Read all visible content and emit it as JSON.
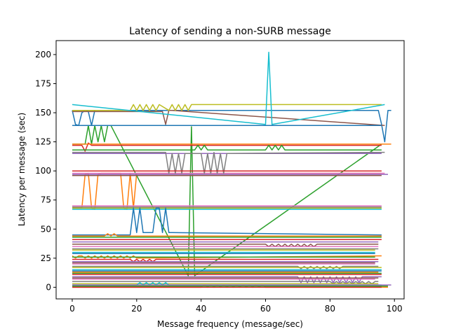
{
  "chart_data": {
    "type": "line",
    "title": "Latency of sending a non-SURB message",
    "xlabel": "Message frequency (message/sec)",
    "ylabel": "Latency per message (sec)",
    "xlim": [
      -5,
      103
    ],
    "ylim": [
      -10,
      212
    ],
    "xticks": [
      0,
      20,
      40,
      60,
      80,
      100
    ],
    "yticks": [
      0,
      25,
      50,
      75,
      100,
      125,
      150,
      175,
      200
    ],
    "grid": false,
    "legend": "none",
    "palette": [
      "#1f77b4",
      "#ff7f0e",
      "#2ca02c",
      "#d62728",
      "#9467bd",
      "#8c564b",
      "#e377c2",
      "#7f7f7f",
      "#bcbd22",
      "#17becf"
    ],
    "series": [
      {
        "x": [
          0,
          1,
          2,
          3,
          4,
          5,
          6,
          7,
          30,
          31,
          95,
          96,
          97,
          98,
          99
        ],
        "y": [
          152,
          140,
          139,
          150,
          152,
          151,
          139,
          152,
          152,
          152,
          152,
          140,
          125,
          152,
          152
        ]
      },
      {
        "x": [
          0,
          3,
          4,
          5,
          6,
          7,
          8,
          9,
          10,
          15,
          16,
          17,
          18,
          19,
          20,
          96
        ],
        "y": [
          68,
          68,
          97,
          98,
          68,
          67,
          97,
          98,
          98,
          98,
          68,
          67,
          98,
          68,
          98,
          98
        ]
      },
      {
        "x": [
          0,
          4,
          5,
          6,
          7,
          8,
          9,
          10,
          11,
          12,
          36,
          37,
          38,
          96
        ],
        "y": [
          123,
          123,
          139,
          123,
          139,
          125,
          139,
          125,
          139,
          139,
          10,
          138,
          10,
          123
        ]
      },
      {
        "x": [
          0,
          3,
          4,
          5,
          6,
          96
        ],
        "y": [
          122,
          122,
          117,
          124,
          122,
          122
        ]
      },
      {
        "x": [
          0,
          96
        ],
        "y": [
          115,
          115
        ]
      },
      {
        "x": [
          0,
          28,
          29,
          30,
          31,
          97
        ],
        "y": [
          151,
          151,
          140,
          152,
          152,
          139
        ]
      },
      {
        "x": [
          0,
          97
        ],
        "y": [
          98,
          98
        ]
      },
      {
        "x": [
          0,
          29,
          30,
          31,
          32,
          33,
          34,
          35,
          40,
          41,
          42,
          43,
          44,
          45,
          46,
          47,
          48,
          97
        ],
        "y": [
          116,
          116,
          98,
          115,
          98,
          115,
          98,
          115,
          115,
          98,
          115,
          98,
          116,
          98,
          115,
          98,
          115,
          116
        ]
      },
      {
        "x": [
          0,
          18,
          19,
          20,
          21,
          22,
          23,
          24,
          25,
          26,
          27,
          30,
          31,
          32,
          33,
          34,
          35,
          36,
          37,
          96
        ],
        "y": [
          152,
          152,
          157,
          152,
          157,
          152,
          157,
          152,
          157,
          152,
          157,
          152,
          157,
          152,
          157,
          152,
          157,
          152,
          157,
          157
        ]
      },
      {
        "x": [
          0,
          60,
          61,
          62,
          97
        ],
        "y": [
          157,
          140,
          202,
          140,
          157
        ]
      },
      {
        "x": [
          0,
          96
        ],
        "y": [
          139,
          139
        ]
      },
      {
        "x": [
          0,
          99
        ],
        "y": [
          123,
          123
        ]
      },
      {
        "x": [
          0,
          38,
          39,
          40,
          41,
          42,
          60,
          61,
          62,
          63,
          64,
          65,
          66,
          96
        ],
        "y": [
          118,
          118,
          122,
          118,
          122,
          118,
          118,
          122,
          118,
          122,
          118,
          122,
          118,
          118
        ]
      },
      {
        "x": [
          0,
          96
        ],
        "y": [
          100,
          100
        ]
      },
      {
        "x": [
          0,
          98
        ],
        "y": [
          97,
          97
        ]
      },
      {
        "x": [
          0,
          96
        ],
        "y": [
          96,
          96
        ]
      },
      {
        "x": [
          0,
          96
        ],
        "y": [
          70,
          70
        ]
      },
      {
        "x": [
          0,
          96
        ],
        "y": [
          69,
          69
        ]
      },
      {
        "x": [
          0,
          96
        ],
        "y": [
          68,
          68
        ]
      },
      {
        "x": [
          0,
          96
        ],
        "y": [
          67,
          67
        ]
      },
      {
        "x": [
          0,
          18,
          19,
          20,
          21,
          22,
          23,
          24,
          25,
          26,
          27,
          28,
          29,
          30,
          31,
          96
        ],
        "y": [
          45,
          45,
          68,
          47,
          68,
          47,
          47,
          47,
          47,
          68,
          68,
          47,
          68,
          47,
          47,
          45
        ]
      },
      {
        "x": [
          0,
          10,
          11,
          12,
          13,
          14,
          96
        ],
        "y": [
          44,
          44,
          46,
          44,
          46,
          44,
          44
        ]
      },
      {
        "x": [
          0,
          96
        ],
        "y": [
          43,
          43
        ]
      },
      {
        "x": [
          0,
          96
        ],
        "y": [
          41,
          41
        ]
      },
      {
        "x": [
          0,
          95
        ],
        "y": [
          39,
          39
        ]
      },
      {
        "x": [
          0,
          60,
          61,
          62,
          63,
          64,
          65,
          66,
          67,
          68,
          69,
          70,
          71,
          72,
          73,
          74,
          75,
          76,
          95
        ],
        "y": [
          37,
          37,
          35,
          37,
          35,
          37,
          35,
          37,
          35,
          37,
          35,
          37,
          35,
          37,
          35,
          37,
          35,
          37,
          37
        ]
      },
      {
        "x": [
          0,
          95
        ],
        "y": [
          35,
          35
        ]
      },
      {
        "x": [
          0,
          95
        ],
        "y": [
          33,
          33
        ]
      },
      {
        "x": [
          0,
          94
        ],
        "y": [
          32,
          32
        ]
      },
      {
        "x": [
          0,
          94
        ],
        "y": [
          30,
          30
        ]
      },
      {
        "x": [
          0,
          94
        ],
        "y": [
          29,
          29
        ]
      },
      {
        "x": [
          0,
          1,
          2,
          3,
          4,
          5,
          6,
          7,
          8,
          9,
          10,
          11,
          12,
          13,
          14,
          15,
          16,
          17,
          18,
          19,
          20,
          96
        ],
        "y": [
          27,
          25,
          27,
          27,
          25,
          27,
          25,
          27,
          25,
          27,
          25,
          27,
          25,
          27,
          25,
          27,
          25,
          27,
          25,
          27,
          25,
          27
        ]
      },
      {
        "x": [
          0,
          94
        ],
        "y": [
          26,
          26
        ]
      },
      {
        "x": [
          0,
          18,
          19,
          20,
          21,
          22,
          23,
          24,
          25,
          26,
          95
        ],
        "y": [
          24,
          24,
          22,
          24,
          22,
          24,
          22,
          24,
          22,
          24,
          24
        ]
      },
      {
        "x": [
          0,
          95
        ],
        "y": [
          22,
          22
        ]
      },
      {
        "x": [
          0,
          94
        ],
        "y": [
          21,
          21
        ]
      },
      {
        "x": [
          0,
          94
        ],
        "y": [
          20,
          20
        ]
      },
      {
        "x": [
          0,
          70,
          71,
          72,
          73,
          74,
          75,
          76,
          77,
          78,
          79,
          80,
          81,
          82,
          83,
          84,
          95
        ],
        "y": [
          18,
          18,
          16,
          18,
          16,
          18,
          16,
          18,
          16,
          18,
          16,
          18,
          16,
          18,
          16,
          18,
          18
        ]
      },
      {
        "x": [
          0,
          96
        ],
        "y": [
          17,
          17
        ]
      },
      {
        "x": [
          0,
          96
        ],
        "y": [
          15,
          15
        ]
      },
      {
        "x": [
          0,
          96
        ],
        "y": [
          14,
          14
        ]
      },
      {
        "x": [
          0,
          95
        ],
        "y": [
          13,
          13
        ]
      },
      {
        "x": [
          0,
          96
        ],
        "y": [
          12,
          12
        ]
      },
      {
        "x": [
          0,
          96
        ],
        "y": [
          11,
          11
        ]
      },
      {
        "x": [
          0,
          70,
          71,
          72,
          73,
          74,
          75,
          76,
          77,
          78,
          79,
          80,
          81,
          82,
          83,
          84,
          85,
          86,
          87,
          88,
          89,
          90,
          96
        ],
        "y": [
          9,
          9,
          4,
          9,
          4,
          9,
          4,
          9,
          4,
          9,
          4,
          9,
          4,
          9,
          4,
          9,
          4,
          9,
          4,
          9,
          4,
          9,
          9
        ]
      },
      {
        "x": [
          0,
          95
        ],
        "y": [
          8,
          8
        ]
      },
      {
        "x": [
          0,
          94
        ],
        "y": [
          7,
          7
        ]
      },
      {
        "x": [
          0,
          80,
          81,
          82,
          83,
          84,
          85,
          86,
          87,
          88,
          89,
          90,
          91,
          92,
          93,
          94,
          95
        ],
        "y": [
          5,
          5,
          3,
          5,
          3,
          5,
          3,
          5,
          3,
          5,
          3,
          5,
          3,
          5,
          3,
          5,
          5
        ]
      },
      {
        "x": [
          0,
          95
        ],
        "y": [
          3,
          3
        ]
      },
      {
        "x": [
          0,
          20,
          21,
          22,
          23,
          24,
          25,
          26,
          27,
          28,
          29,
          30,
          96
        ],
        "y": [
          2,
          2,
          4,
          2,
          4,
          2,
          4,
          2,
          4,
          2,
          4,
          2,
          2
        ]
      },
      {
        "x": [
          0,
          96
        ],
        "y": [
          1,
          1
        ]
      },
      {
        "x": [
          0,
          40,
          41,
          42,
          43,
          44,
          45,
          46,
          47,
          48,
          49,
          50,
          51,
          52,
          53,
          54,
          55,
          56,
          57,
          58,
          59,
          60,
          98
        ],
        "y": [
          0,
          0,
          2,
          0,
          2,
          0,
          2,
          0,
          2,
          0,
          2,
          0,
          2,
          0,
          2,
          0,
          2,
          0,
          2,
          0,
          2,
          0,
          0
        ]
      },
      {
        "x": [
          0,
          98
        ],
        "y": [
          1,
          1
        ]
      },
      {
        "x": [
          0,
          96
        ],
        "y": [
          0,
          0
        ]
      },
      {
        "x": [
          0,
          99
        ],
        "y": [
          2,
          2
        ]
      }
    ]
  }
}
